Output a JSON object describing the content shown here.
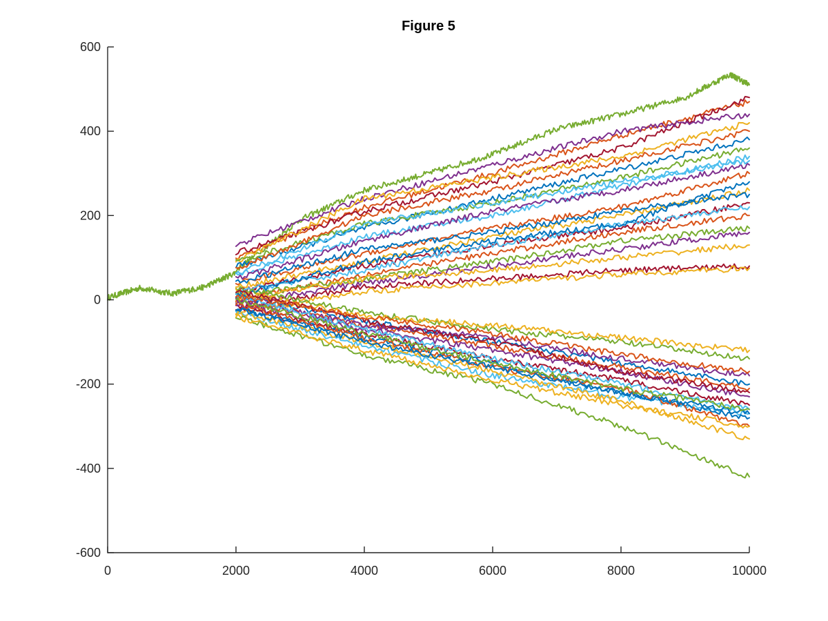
{
  "chart_data": {
    "type": "line",
    "title": "Figure 5",
    "xlabel": "",
    "ylabel": "",
    "xlim": [
      0,
      10000
    ],
    "ylim": [
      -600,
      600
    ],
    "xticks": [
      0,
      2000,
      4000,
      6000,
      8000,
      10000
    ],
    "yticks": [
      -600,
      -400,
      -200,
      0,
      200,
      400,
      600
    ],
    "xtick_labels": [
      "0",
      "2000",
      "4000",
      "6000",
      "8000",
      "10000"
    ],
    "ytick_labels": [
      "-600",
      "-400",
      "-200",
      "0",
      "200",
      "400",
      "600"
    ],
    "grid": false,
    "legend": "none",
    "colors": [
      "#0072BD",
      "#D95319",
      "#EDB120",
      "#7E2F8E",
      "#77AC30",
      "#4DBEEE",
      "#A2142F"
    ],
    "series": [
      {
        "color": "#77AC30",
        "x": [
          0,
          500,
          1000,
          1500,
          2000
        ],
        "y": [
          5,
          28,
          15,
          30,
          65
        ]
      },
      {
        "color": "#77AC30",
        "x": [
          2000,
          3000,
          4000,
          5000,
          6000,
          7000,
          8000,
          9000,
          9700,
          10000
        ],
        "y": [
          70,
          190,
          260,
          300,
          345,
          405,
          440,
          480,
          535,
          510
        ]
      },
      {
        "color": "#D95319",
        "x": [
          2000,
          4000,
          6000,
          8000,
          10000
        ],
        "y": [
          100,
          220,
          300,
          390,
          470
        ]
      },
      {
        "color": "#A2142F",
        "x": [
          2000,
          4000,
          6000,
          8000,
          10000
        ],
        "y": [
          110,
          210,
          280,
          360,
          480
        ]
      },
      {
        "color": "#7E2F8E",
        "x": [
          2000,
          4000,
          6000,
          8000,
          10000
        ],
        "y": [
          130,
          240,
          320,
          400,
          440
        ]
      },
      {
        "color": "#EDB120",
        "x": [
          2000,
          4000,
          6000,
          8000,
          10000
        ],
        "y": [
          90,
          240,
          290,
          340,
          420
        ]
      },
      {
        "color": "#0072BD",
        "x": [
          2000,
          4000,
          6000,
          8000,
          10000
        ],
        "y": [
          80,
          170,
          240,
          310,
          380
        ]
      },
      {
        "color": "#4DBEEE",
        "x": [
          2000,
          4000,
          6000,
          8000,
          10000
        ],
        "y": [
          60,
          150,
          200,
          270,
          340
        ]
      },
      {
        "color": "#77AC30",
        "x": [
          2000,
          4000,
          6000,
          8000,
          10000
        ],
        "y": [
          90,
          180,
          230,
          290,
          360
        ]
      },
      {
        "color": "#D95319",
        "x": [
          2000,
          4000,
          6000,
          8000,
          10000
        ],
        "y": [
          40,
          110,
          170,
          220,
          300
        ]
      },
      {
        "color": "#7E2F8E",
        "x": [
          2000,
          4000,
          6000,
          8000,
          10000
        ],
        "y": [
          50,
          140,
          210,
          260,
          320
        ]
      },
      {
        "color": "#EDB120",
        "x": [
          2000,
          4000,
          6000,
          8000,
          10000
        ],
        "y": [
          30,
          90,
          150,
          200,
          260
        ]
      },
      {
        "color": "#A2142F",
        "x": [
          2000,
          4000,
          6000,
          8000,
          10000
        ],
        "y": [
          20,
          80,
          130,
          170,
          230
        ]
      },
      {
        "color": "#0072BD",
        "x": [
          2000,
          4000,
          6000,
          8000,
          10000
        ],
        "y": [
          40,
          120,
          160,
          210,
          250
        ]
      },
      {
        "color": "#4DBEEE",
        "x": [
          2000,
          4000,
          6000,
          8000,
          10000
        ],
        "y": [
          20,
          70,
          130,
          180,
          220
        ]
      },
      {
        "color": "#D95319",
        "x": [
          2000,
          4000,
          6000,
          8000,
          10000
        ],
        "y": [
          0,
          60,
          110,
          160,
          200
        ]
      },
      {
        "color": "#77AC30",
        "x": [
          2000,
          4000,
          6000,
          8000,
          10000
        ],
        "y": [
          10,
          50,
          90,
          140,
          170
        ]
      },
      {
        "color": "#7E2F8E",
        "x": [
          2000,
          4000,
          6000,
          8000,
          10000
        ],
        "y": [
          -10,
          40,
          80,
          120,
          160
        ]
      },
      {
        "color": "#EDB120",
        "x": [
          2000,
          4000,
          6000,
          8000,
          10000
        ],
        "y": [
          0,
          50,
          70,
          100,
          130
        ]
      },
      {
        "color": "#A2142F",
        "x": [
          2000,
          4000,
          6000,
          8000,
          10000
        ],
        "y": [
          -20,
          30,
          50,
          70,
          80
        ]
      },
      {
        "color": "#EDB120",
        "x": [
          2000,
          4000,
          6000,
          8000,
          10000
        ],
        "y": [
          -30,
          20,
          40,
          60,
          75
        ]
      },
      {
        "color": "#0072BD",
        "x": [
          2000,
          4000,
          6000,
          8000,
          10000
        ],
        "y": [
          10,
          90,
          140,
          180,
          280
        ]
      },
      {
        "color": "#4DBEEE",
        "x": [
          2000,
          4000,
          6000,
          8000,
          10000
        ],
        "y": [
          60,
          180,
          230,
          280,
          330
        ]
      },
      {
        "color": "#D95319",
        "x": [
          2000,
          4000,
          6000,
          8000,
          10000
        ],
        "y": [
          70,
          200,
          260,
          330,
          400
        ]
      },
      {
        "color": "#77AC30",
        "x": [
          2000,
          4000,
          6000,
          8000,
          10000
        ],
        "y": [
          30,
          -30,
          -70,
          -100,
          -140
        ]
      },
      {
        "color": "#EDB120",
        "x": [
          2000,
          4000,
          6000,
          8000,
          10000
        ],
        "y": [
          20,
          -40,
          -60,
          -90,
          -120
        ]
      },
      {
        "color": "#0072BD",
        "x": [
          2000,
          4000,
          6000,
          8000,
          10000
        ],
        "y": [
          10,
          -50,
          -100,
          -150,
          -200
        ]
      },
      {
        "color": "#D95319",
        "x": [
          2000,
          4000,
          6000,
          8000,
          10000
        ],
        "y": [
          0,
          -60,
          -110,
          -160,
          -210
        ]
      },
      {
        "color": "#7E2F8E",
        "x": [
          2000,
          4000,
          6000,
          8000,
          10000
        ],
        "y": [
          -10,
          -70,
          -120,
          -170,
          -230
        ]
      },
      {
        "color": "#A2142F",
        "x": [
          2000,
          4000,
          6000,
          8000,
          10000
        ],
        "y": [
          -20,
          -80,
          -140,
          -190,
          -250
        ]
      },
      {
        "color": "#4DBEEE",
        "x": [
          2000,
          4000,
          6000,
          8000,
          10000
        ],
        "y": [
          -30,
          -110,
          -180,
          -230,
          -270
        ]
      },
      {
        "color": "#EDB120",
        "x": [
          2000,
          4000,
          6000,
          8000,
          10000
        ],
        "y": [
          -30,
          -100,
          -170,
          -240,
          -330
        ]
      },
      {
        "color": "#77AC30",
        "x": [
          2000,
          4000,
          6000,
          8000,
          10000
        ],
        "y": [
          -40,
          -130,
          -200,
          -300,
          -420
        ]
      },
      {
        "color": "#0072BD",
        "x": [
          2000,
          4000,
          6000,
          8000,
          10000
        ],
        "y": [
          -20,
          -90,
          -150,
          -220,
          -280
        ]
      },
      {
        "color": "#D95319",
        "x": [
          2000,
          4000,
          6000,
          8000,
          10000
        ],
        "y": [
          -10,
          -90,
          -160,
          -210,
          -300
        ]
      },
      {
        "color": "#7E2F8E",
        "x": [
          2000,
          4000,
          6000,
          8000,
          10000
        ],
        "y": [
          0,
          -60,
          -90,
          -140,
          -180
        ]
      },
      {
        "color": "#4DBEEE",
        "x": [
          2000,
          4000,
          6000,
          8000,
          10000
        ],
        "y": [
          10,
          -70,
          -140,
          -200,
          -260
        ]
      },
      {
        "color": "#A2142F",
        "x": [
          2000,
          4000,
          6000,
          8000,
          10000
        ],
        "y": [
          20,
          -50,
          -100,
          -170,
          -220
        ]
      },
      {
        "color": "#EDB120",
        "x": [
          2000,
          4000,
          6000,
          8000,
          10000
        ],
        "y": [
          -40,
          -120,
          -190,
          -250,
          -300
        ]
      },
      {
        "color": "#0072BD",
        "x": [
          2000,
          4000,
          6000,
          8000,
          10000
        ],
        "y": [
          -20,
          -100,
          -160,
          -220,
          -270
        ]
      },
      {
        "color": "#77AC30",
        "x": [
          2000,
          4000,
          6000,
          8000,
          10000
        ],
        "y": [
          0,
          -80,
          -150,
          -210,
          -260
        ]
      },
      {
        "color": "#D95319",
        "x": [
          2000,
          4000,
          6000,
          8000,
          10000
        ],
        "y": [
          10,
          -40,
          -80,
          -130,
          -170
        ]
      }
    ]
  }
}
